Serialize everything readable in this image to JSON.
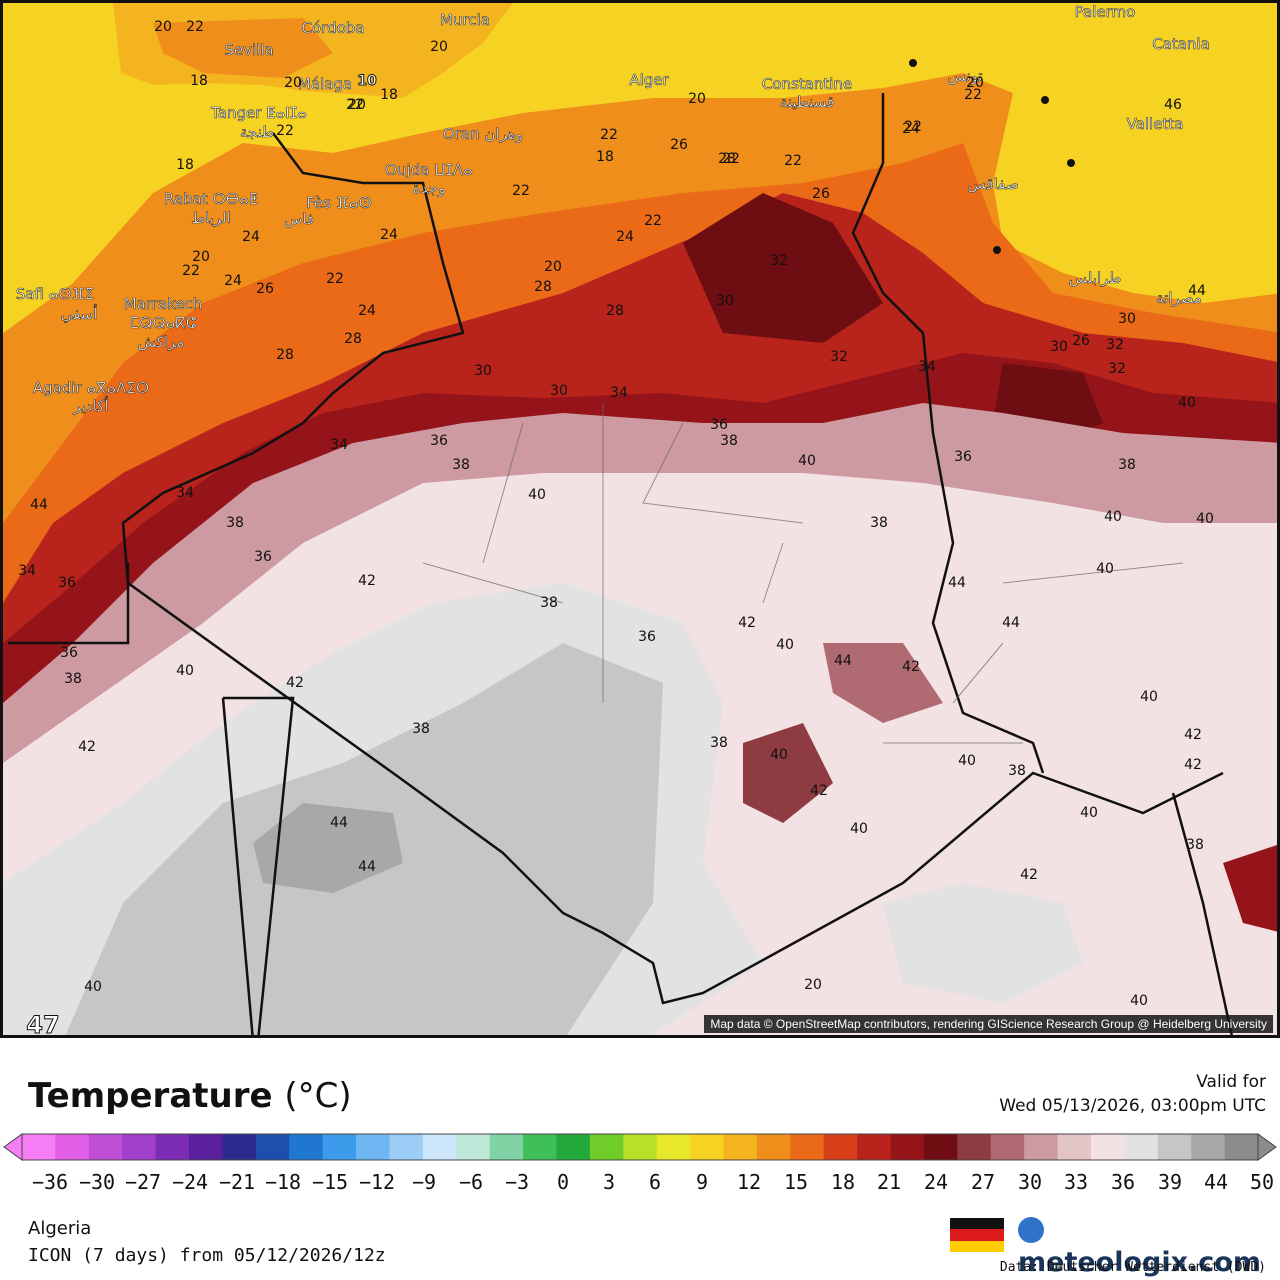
{
  "map": {
    "attribution": "Map data © OpenStreetMap contributors, rendering GIScience Research Group @ Heidelberg University",
    "cities": [
      {
        "name": "Córdoba"
      },
      {
        "name": "Murcia"
      },
      {
        "name": "Sevilla"
      },
      {
        "name": "Málaga"
      },
      {
        "name": "Tanger ⵟⴰⵏⵊⴰ"
      },
      {
        "name": "طنجة"
      },
      {
        "name": "Alger"
      },
      {
        "name": "Constantine"
      },
      {
        "name": "قسنطينة"
      },
      {
        "name": "Oran وهران"
      },
      {
        "name": "Oujda ⵡⵊⴷⴰ"
      },
      {
        "name": "وجدة"
      },
      {
        "name": "Rabat ⵔⴱⴰⵟ"
      },
      {
        "name": "الرباط"
      },
      {
        "name": "Fès ⴼⴰⵙ"
      },
      {
        "name": "فاس"
      },
      {
        "name": "Marrakech"
      },
      {
        "name": "ⵎⵕⵕⴰⴽⵛ"
      },
      {
        "name": "مراكش"
      },
      {
        "name": "Safi ⴰⵙⴼⵉ"
      },
      {
        "name": "أسفي"
      },
      {
        "name": "Agadir ⴰⴳⴰⴷⵉⵔ"
      },
      {
        "name": "أكادير"
      },
      {
        "name": "Palermo"
      },
      {
        "name": "Catania"
      },
      {
        "name": "Valletta"
      },
      {
        "name": "تونس"
      },
      {
        "name": "صفاقس"
      },
      {
        "name": "طرابلس"
      },
      {
        "name": "مصراتة"
      }
    ],
    "temps": [
      "20",
      "22",
      "20",
      "22",
      "18",
      "20",
      "18",
      "10",
      "20",
      "18",
      "20",
      "22",
      "18",
      "22",
      "20",
      "22",
      "22",
      "22",
      "22",
      "24",
      "20",
      "24",
      "22",
      "20",
      "24",
      "22",
      "24",
      "26",
      "22",
      "24",
      "22",
      "24",
      "26",
      "26",
      "28",
      "28",
      "30",
      "30",
      "32",
      "32",
      "30",
      "28",
      "28",
      "34",
      "32",
      "30",
      "34",
      "26",
      "28",
      "30",
      "32",
      "34",
      "36",
      "38",
      "36",
      "38",
      "40",
      "36",
      "38",
      "40",
      "38",
      "36",
      "38",
      "40",
      "34",
      "36",
      "34",
      "36",
      "38",
      "40",
      "42",
      "38",
      "40",
      "42",
      "44",
      "40",
      "42",
      "42",
      "38",
      "36",
      "38",
      "40",
      "42",
      "40",
      "44",
      "42",
      "40",
      "38",
      "40",
      "42",
      "42",
      "40",
      "40",
      "40",
      "38",
      "42",
      "40",
      "44",
      "44",
      "44",
      "40",
      "47",
      "46",
      "44",
      "44",
      "20",
      "24",
      "22"
    ]
  },
  "legend": {
    "title": "Temperature",
    "unit": "(°C)",
    "valid_label": "Valid for",
    "valid_time": "Wed 05/13/2026, 03:00pm UTC",
    "ticks": [
      "−36",
      "−30",
      "−27",
      "−24",
      "−21",
      "−18",
      "−15",
      "−12",
      "−9",
      "−6",
      "−3",
      "0",
      "3",
      "6",
      "9",
      "12",
      "15",
      "18",
      "21",
      "24",
      "27",
      "30",
      "33",
      "36",
      "39",
      "44",
      "50"
    ],
    "colors": [
      "#f57df5",
      "#e05fe6",
      "#c14fd6",
      "#a23fc8",
      "#7a2cb4",
      "#5a1f9a",
      "#2c2a8c",
      "#1f4fae",
      "#1f77d0",
      "#3c9bea",
      "#6fb7f2",
      "#9ccdf6",
      "#cde6fa",
      "#bfe7d8",
      "#7fd3a4",
      "#3fbf5a",
      "#22a83b",
      "#6fcc29",
      "#b6e02a",
      "#e8e82a",
      "#f6d322",
      "#f4b41f",
      "#f08e1c",
      "#ea6a18",
      "#d8401a",
      "#b8231b",
      "#951419",
      "#6e0d12",
      "#8e3c42",
      "#b06a71",
      "#cc9aa0",
      "#e3c4c7",
      "#f3e2e3",
      "#e2e2e2",
      "#c6c6c6",
      "#a8a8a8",
      "#8c8c8c"
    ],
    "region": "Algeria",
    "model": "ICON (7 days) from 05/12/2026/12z",
    "brand": "meteologix.com",
    "source": "Data: Deutscher Wetterdienst (DWD)"
  }
}
